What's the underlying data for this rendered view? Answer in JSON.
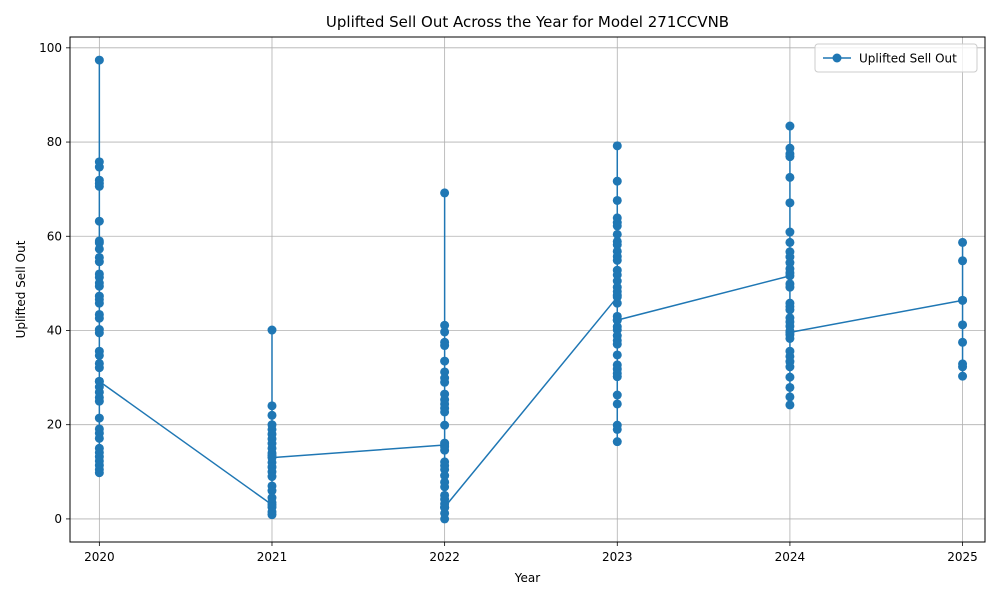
{
  "chart_data": {
    "type": "line",
    "title": "Uplifted Sell Out Across the Year for Model 271CCVNB",
    "xlabel": "Year",
    "ylabel": "Uplifted Sell Out",
    "xlim": [
      2019.83,
      2025.13
    ],
    "ylim": [
      -4.9,
      102.3
    ],
    "x_ticks": [
      "2020",
      "2021",
      "2022",
      "2023",
      "2024",
      "2025"
    ],
    "y_ticks": [
      "0",
      "20",
      "40",
      "60",
      "80",
      "100"
    ],
    "grid": true,
    "legend_position": "top-right",
    "color": "#1f77b4",
    "series": [
      {
        "name": "Uplifted Sell Out",
        "segments": [
          {
            "x": 2020,
            "values": [
              97.4,
              75.8,
              74.7,
              71.9,
              71.2,
              70.6,
              63.2,
              59.0,
              58.6,
              57.3,
              55.5,
              54.6,
              52.0,
              51.3,
              50.1,
              49.4,
              47.3,
              46.6,
              45.8,
              43.4,
              42.6,
              40.2,
              39.5,
              35.6,
              34.7,
              33.0,
              32.1,
              29.2,
              28.0,
              26.9,
              25.8,
              25.0,
              21.4,
              19.1,
              18.2,
              17.1,
              15.0,
              14.1,
              13.2,
              12.3,
              11.4,
              10.5,
              9.8,
              29.2
            ]
          },
          {
            "x": 2021,
            "values": [
              3.0,
              40.1,
              24.0,
              22.0,
              20.0,
              19.0,
              18.0,
              17.0,
              16.0,
              15.0,
              14.0,
              13.5,
              12.0,
              11.0,
              10.0,
              9.0,
              7.0,
              6.0,
              4.5,
              3.5,
              2.5,
              1.5,
              0.9,
              13.0
            ]
          },
          {
            "x": 2022,
            "values": [
              15.7,
              69.2,
              41.1,
              39.7,
              37.5,
              36.8,
              33.5,
              31.2,
              29.9,
              29.0,
              26.5,
              25.3,
              24.4,
              23.5,
              22.7,
              19.9,
              16.1,
              15.3,
              14.6,
              12.1,
              11.3,
              10.5,
              9.2,
              7.8,
              6.8,
              5.0,
              4.2,
              3.2,
              2.4,
              1.2,
              0.0,
              2.5
            ]
          },
          {
            "x": 2023,
            "values": [
              47.1,
              79.2,
              71.7,
              67.6,
              63.9,
              62.9,
              62.2,
              60.4,
              58.9,
              58.2,
              56.8,
              55.7,
              54.9,
              52.8,
              51.8,
              50.5,
              49.2,
              48.3,
              47.5,
              45.8,
              43.0,
              42.2,
              40.8,
              40.1,
              38.9,
              37.9,
              37.1,
              34.8,
              32.7,
              31.8,
              30.9,
              30.2,
              26.3,
              24.4,
              19.9,
              19.0,
              16.4,
              42.2
            ]
          },
          {
            "x": 2024,
            "values": [
              51.6,
              83.4,
              78.7,
              77.5,
              76.9,
              72.5,
              67.1,
              60.9,
              58.7,
              56.7,
              55.6,
              54.4,
              53.1,
              52.2,
              49.9,
              49.2,
              45.8,
              45.1,
              44.4,
              42.7,
              41.8,
              40.9,
              39.9,
              39.1,
              38.3,
              35.6,
              34.5,
              33.4,
              32.3,
              30.1,
              27.9,
              25.9,
              24.2,
              39.6
            ]
          },
          {
            "x": 2025,
            "values": [
              46.4,
              58.7,
              54.8,
              46.4,
              41.2,
              37.5,
              32.9,
              32.3,
              30.3
            ]
          }
        ]
      }
    ]
  }
}
